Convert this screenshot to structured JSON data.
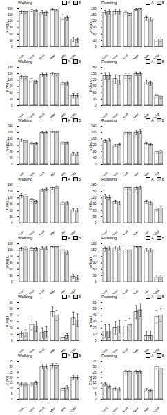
{
  "chart_data": [
    {
      "type": "bar",
      "title": "Walking",
      "y_label": "α (deg.)",
      "categories": [
        "Touch-down",
        "Mid-stance",
        "Lift-off",
        "Max",
        "Min",
        "ROM"
      ],
      "series": [
        {
          "name": "A",
          "color": "#ffffff",
          "values": [
            165,
            172,
            160,
            175,
            140,
            35
          ],
          "errors": [
            8,
            5,
            10,
            4,
            12,
            10
          ]
        },
        {
          "name": "B",
          "color": "#d3d3d3",
          "values": [
            165,
            170,
            158,
            173,
            135,
            30
          ],
          "errors": [
            8,
            5,
            10,
            4,
            10,
            10
          ]
        }
      ],
      "ylim": [
        0,
        180
      ],
      "yticks": [
        0,
        30,
        60,
        90,
        120,
        150,
        180
      ]
    },
    {
      "type": "bar",
      "title": "Running",
      "y_label": "α (deg.)",
      "categories": [
        "Touch-down",
        "Mid-stance",
        "Lift-off",
        "Max",
        "Min",
        "ROM"
      ],
      "series": [
        {
          "name": "A",
          "color": "#ffffff",
          "values": [
            160,
            165,
            160,
            175,
            135,
            35
          ],
          "errors": [
            10,
            10,
            8,
            5,
            10,
            10
          ]
        },
        {
          "name": "B",
          "color": "#d3d3d3",
          "values": [
            165,
            165,
            155,
            178,
            130,
            35
          ],
          "errors": [
            10,
            10,
            8,
            5,
            10,
            10
          ]
        }
      ],
      "ylim": [
        0,
        180
      ],
      "yticks": [
        0,
        30,
        60,
        90,
        120,
        150,
        180
      ]
    },
    {
      "type": "bar",
      "title": "Walking",
      "y_label": "β (deg.)",
      "categories": [
        "Touch-down",
        "Mid-stance",
        "Lift-off",
        "Max",
        "Min",
        "ROM"
      ],
      "series": [
        {
          "name": "A",
          "color": "#ffffff",
          "values": [
            135,
            120,
            145,
            150,
            105,
            45
          ],
          "errors": [
            8,
            8,
            10,
            6,
            8,
            10
          ]
        },
        {
          "name": "B",
          "color": "#d3d3d3",
          "values": [
            135,
            112,
            145,
            148,
            105,
            45
          ],
          "errors": [
            8,
            8,
            10,
            6,
            8,
            10
          ]
        }
      ],
      "ylim": [
        0,
        180
      ],
      "yticks": [
        0,
        30,
        60,
        90,
        120,
        150,
        180
      ]
    },
    {
      "type": "bar",
      "title": "Running",
      "y_label": "β (deg.)",
      "categories": [
        "Touch-down",
        "Mid-stance",
        "Lift-off",
        "Max",
        "Min",
        "ROM"
      ],
      "series": [
        {
          "name": "A",
          "color": "#ffffff",
          "values": [
            140,
            125,
            140,
            150,
            110,
            45
          ],
          "errors": [
            15,
            20,
            12,
            8,
            10,
            8
          ]
        },
        {
          "name": "B",
          "color": "#d3d3d3",
          "values": [
            140,
            120,
            140,
            150,
            105,
            40
          ],
          "errors": [
            15,
            20,
            12,
            8,
            10,
            8
          ]
        }
      ],
      "ylim": [
        0,
        180
      ],
      "yticks": [
        0,
        30,
        60,
        90,
        120,
        150,
        180
      ]
    },
    {
      "type": "bar",
      "title": "Walking",
      "y_label": "γ (deg.)",
      "categories": [
        "Touch-down",
        "Mid-stance",
        "Lift-off",
        "Max",
        "Min",
        "ROM"
      ],
      "series": [
        {
          "name": "A",
          "color": "#ffffff",
          "values": [
            150,
            130,
            200,
            205,
            135,
            65
          ],
          "errors": [
            8,
            6,
            6,
            5,
            6,
            10
          ]
        },
        {
          "name": "B",
          "color": "#d3d3d3",
          "values": [
            145,
            130,
            200,
            205,
            135,
            65
          ],
          "errors": [
            8,
            6,
            6,
            5,
            6,
            10
          ]
        }
      ],
      "ylim": [
        0,
        240
      ],
      "yticks": [
        0,
        40,
        80,
        120,
        160,
        200,
        240
      ]
    },
    {
      "type": "bar",
      "title": "Running",
      "y_label": "γ (deg.)",
      "categories": [
        "Touch-down",
        "Mid-stance",
        "Lift-off",
        "Max",
        "Min",
        "ROM"
      ],
      "series": [
        {
          "name": "A",
          "color": "#ffffff",
          "values": [
            145,
            120,
            200,
            200,
            130,
            75
          ],
          "errors": [
            10,
            6,
            10,
            12,
            6,
            8
          ]
        },
        {
          "name": "B",
          "color": "#d3d3d3",
          "values": [
            150,
            125,
            200,
            205,
            125,
            80
          ],
          "errors": [
            10,
            6,
            10,
            12,
            6,
            8
          ]
        }
      ],
      "ylim": [
        0,
        240
      ],
      "yticks": [
        0,
        40,
        80,
        120,
        160,
        200,
        240
      ]
    },
    {
      "type": "bar",
      "title": "Walking",
      "y_label": "θ (deg.)",
      "categories": [
        "Touch-down",
        "Mid-stance",
        "Lift-off",
        "Max",
        "Min",
        "ROM"
      ],
      "series": [
        {
          "name": "A",
          "color": "#ffffff",
          "values": [
            130,
            110,
            155,
            165,
            95,
            60
          ],
          "errors": [
            10,
            8,
            6,
            5,
            8,
            8
          ]
        },
        {
          "name": "B",
          "color": "#d3d3d3",
          "values": [
            125,
            100,
            160,
            170,
            95,
            60
          ],
          "errors": [
            10,
            8,
            6,
            5,
            8,
            8
          ]
        }
      ],
      "ylim": [
        0,
        180
      ],
      "yticks": [
        0,
        30,
        60,
        90,
        120,
        150,
        180
      ]
    },
    {
      "type": "bar",
      "title": "Running",
      "y_label": "θ (deg.)",
      "categories": [
        "Touch-down",
        "Mid-stance",
        "Lift-off",
        "Max",
        "Min",
        "ROM"
      ],
      "series": [
        {
          "name": "A",
          "color": "#ffffff",
          "values": [
            125,
            100,
            165,
            165,
            100,
            65
          ],
          "errors": [
            10,
            8,
            6,
            6,
            8,
            8
          ]
        },
        {
          "name": "B",
          "color": "#d3d3d3",
          "values": [
            120,
            95,
            165,
            168,
            95,
            70
          ],
          "errors": [
            10,
            8,
            6,
            6,
            8,
            8
          ]
        }
      ],
      "ylim": [
        0,
        180
      ],
      "yticks": [
        0,
        30,
        60,
        90,
        120,
        150,
        180
      ]
    },
    {
      "type": "bar",
      "title": "Walking",
      "y_label": "φ (deg.)",
      "categories": [
        "Touch-down",
        "Mid-stance",
        "Lift-off",
        "Max",
        "Min",
        "ROM"
      ],
      "series": [
        {
          "name": "A",
          "color": "#ffffff",
          "values": [
            155,
            155,
            160,
            165,
            150,
            25
          ],
          "errors": [
            8,
            8,
            6,
            4,
            10,
            10
          ]
        },
        {
          "name": "B",
          "color": "#d3d3d3",
          "values": [
            160,
            155,
            160,
            165,
            140,
            20
          ],
          "errors": [
            8,
            8,
            6,
            4,
            10,
            10
          ]
        }
      ],
      "ylim": [
        0,
        180
      ],
      "yticks": [
        0,
        30,
        60,
        90,
        120,
        150,
        180
      ]
    },
    {
      "type": "bar",
      "title": "Running",
      "y_label": "φ (deg.)",
      "categories": [
        "Touch-down",
        "Mid-stance",
        "Lift-off",
        "Max",
        "Min",
        "ROM"
      ],
      "series": [
        {
          "name": "A",
          "color": "#ffffff",
          "values": [
            155,
            160,
            150,
            165,
            150,
            20
          ],
          "errors": [
            10,
            10,
            10,
            4,
            8,
            8
          ]
        },
        {
          "name": "B",
          "color": "#d3d3d3",
          "values": [
            160,
            160,
            150,
            165,
            148,
            20
          ],
          "errors": [
            10,
            10,
            10,
            4,
            8,
            8
          ]
        }
      ],
      "ylim": [
        0,
        180
      ],
      "yticks": [
        0,
        30,
        60,
        90,
        120,
        150,
        180
      ]
    },
    {
      "type": "bar",
      "title": "Walking",
      "y_label": "ψ (deg.)",
      "categories": [
        "Touch-down",
        "Mid-stance",
        "Lift-off",
        "Max",
        "Min",
        "ROM"
      ],
      "series": [
        {
          "name": "A",
          "color": "#ffffff",
          "values": [
            10,
            25,
            12,
            45,
            5,
            35
          ],
          "errors": [
            5,
            8,
            8,
            8,
            4,
            10
          ]
        },
        {
          "name": "B",
          "color": "#d3d3d3",
          "values": [
            12,
            22,
            14,
            40,
            7,
            32
          ],
          "errors": [
            5,
            8,
            8,
            8,
            4,
            10
          ]
        }
      ],
      "ylim": [
        0,
        60
      ],
      "yticks": [
        0,
        10,
        20,
        30,
        40,
        50,
        60
      ]
    },
    {
      "type": "bar",
      "title": "Running",
      "y_label": "ψ (deg.)",
      "categories": [
        "Touch-down",
        "Mid-stance",
        "Lift-off",
        "Max",
        "Min",
        "ROM"
      ],
      "series": [
        {
          "name": "A",
          "color": "#ffffff",
          "values": [
            15,
            20,
            22,
            45,
            7,
            38
          ],
          "errors": [
            10,
            10,
            10,
            10,
            8,
            10
          ]
        },
        {
          "name": "B",
          "color": "#d3d3d3",
          "values": [
            15,
            22,
            25,
            48,
            7,
            40
          ],
          "errors": [
            10,
            10,
            10,
            10,
            8,
            10
          ]
        }
      ],
      "ylim": [
        0,
        60
      ],
      "yticks": [
        0,
        10,
        20,
        30,
        40,
        50,
        60
      ]
    },
    {
      "type": "bar",
      "title": "Walking",
      "y_label": "Z (cm)",
      "categories": [
        "Touch-down",
        "Mid-stance",
        "Lift-off",
        "Max",
        "Min",
        "ROM"
      ],
      "series": [
        {
          "name": "A",
          "color": "#ffffff",
          "values": [
            14,
            14,
            30,
            31,
            10,
            20
          ],
          "errors": [
            1.5,
            1.5,
            2,
            2,
            1.5,
            2
          ]
        },
        {
          "name": "B",
          "color": "#d3d3d3",
          "values": [
            14,
            15,
            30,
            31,
            11,
            20
          ],
          "errors": [
            1.5,
            1.5,
            2,
            2,
            1.5,
            2
          ]
        }
      ],
      "ylim": [
        0,
        35
      ],
      "yticks": [
        0,
        5,
        10,
        15,
        20,
        25,
        30,
        35
      ]
    },
    {
      "type": "bar",
      "title": "Running",
      "y_label": "Z (cm)",
      "categories": [
        "Touch-down",
        "Mid-stance",
        "Lift-off",
        "Max",
        "Min",
        "ROM"
      ],
      "series": [
        {
          "name": "A",
          "color": "#ffffff",
          "values": [
            14,
            10,
            25,
            25,
            9,
            30
          ],
          "errors": [
            1.5,
            1.5,
            1.5,
            1.5,
            1,
            2
          ]
        },
        {
          "name": "B",
          "color": "#d3d3d3",
          "values": [
            12,
            9,
            25,
            25,
            8,
            28
          ],
          "errors": [
            1.5,
            1.5,
            1.5,
            1.5,
            1,
            2
          ]
        }
      ],
      "ylim": [
        0,
        35
      ],
      "yticks": [
        0,
        5,
        10,
        15,
        20,
        25,
        30,
        35
      ]
    }
  ]
}
